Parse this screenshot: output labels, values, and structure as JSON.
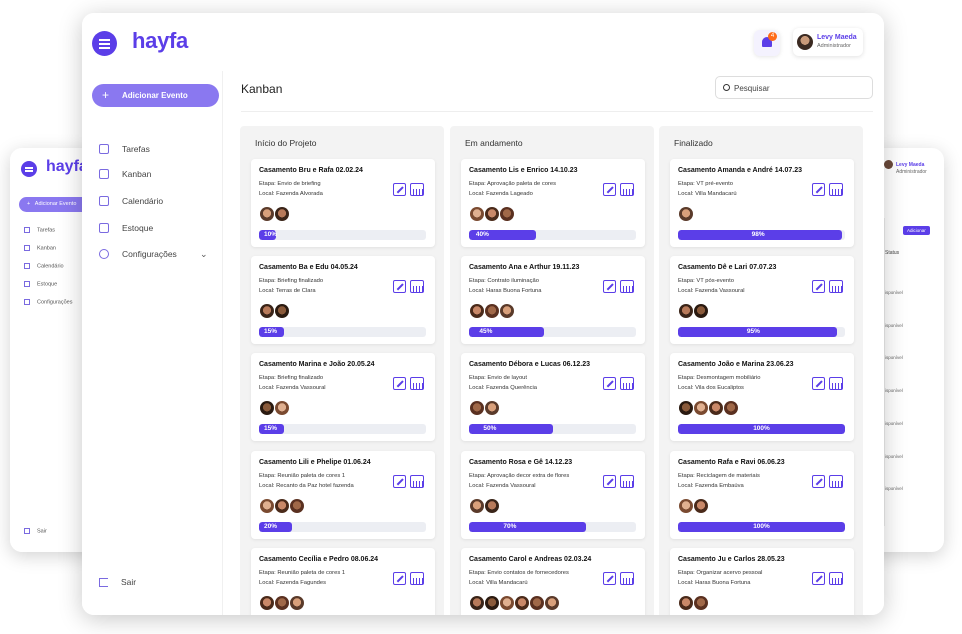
{
  "app": {
    "brand": "hayfa"
  },
  "header": {
    "notifications_count": "4",
    "user": {
      "name": "Levy Maeda",
      "role": "Administrador"
    }
  },
  "sidebar": {
    "add_event_label": "Adicionar Evento",
    "items": [
      {
        "label": "Tarefas",
        "icon": "clipboard-icon"
      },
      {
        "label": "Kanban",
        "icon": "kanban-icon"
      },
      {
        "label": "Calendário",
        "icon": "calendar-icon"
      },
      {
        "label": "Estoque",
        "icon": "box-icon"
      },
      {
        "label": "Configurações",
        "icon": "gear-icon"
      }
    ],
    "exit_label": "Sair"
  },
  "main": {
    "title": "Kanban",
    "search_placeholder": "Pesquisar",
    "columns": [
      {
        "title": "Início do Projeto",
        "cards": [
          {
            "title": "Casamento Bru e Rafa 02.02.24",
            "stage": "Etapa: Envio de briefing",
            "place": "Local: Fazenda Alvorada",
            "avatars": 2,
            "progress": "10%"
          },
          {
            "title": "Casamento Ba e Edu 04.05.24",
            "stage": "Etapa: Briefing finalizado",
            "place": "Local: Terras de Clara",
            "avatars": 2,
            "progress": "15%"
          },
          {
            "title": "Casamento Marina e João 20.05.24",
            "stage": "Etapa: Briefing finalizado",
            "place": "Local: Fazenda Vassoural",
            "avatars": 2,
            "progress": "15%"
          },
          {
            "title": "Casamento Lili e Phelipe 01.06.24",
            "stage": "Etapa: Reunião paleta de cores 1",
            "place": "Local: Recanto da Paz hotel fazenda",
            "avatars": 3,
            "progress": "20%"
          },
          {
            "title": "Casamento Cecília e Pedro 08.06.24",
            "stage": "Etapa: Reunião paleta de cores 1",
            "place": "Local: Fazenda Fagundes",
            "avatars": 3,
            "progress": ""
          }
        ]
      },
      {
        "title": "Em andamento",
        "cards": [
          {
            "title": "Casamento Lis e Enrico 14.10.23",
            "stage": "Etapa: Aprovação paleta de cores",
            "place": "Local: Fazenda Lageado",
            "avatars": 3,
            "progress": "40%"
          },
          {
            "title": "Casamento Ana e Arthur 19.11.23",
            "stage": "Etapa: Contrato iluminação",
            "place": "Local: Haras Buona Fortuna",
            "avatars": 3,
            "progress": "45%"
          },
          {
            "title": "Casamento Débora e Lucas 06.12.23",
            "stage": "Etapa: Envio de layout",
            "place": "Local: Fazenda Querência",
            "avatars": 2,
            "progress": "50%"
          },
          {
            "title": "Casamento Rosa e Gê 14.12.23",
            "stage": "Etapa: Aprovação decor extra de flores",
            "place": "Local: Fazenda Vassoural",
            "avatars": 2,
            "progress": "70%"
          },
          {
            "title": "Casamento Carol e Andreas 02.03.24",
            "stage": "Etapa: Envio contatos de fornecedores",
            "place": "Local: Villa Mandacarú",
            "avatars": 6,
            "progress": ""
          }
        ]
      },
      {
        "title": "Finalizado",
        "cards": [
          {
            "title": "Casamento Amanda e André 14.07.23",
            "stage": "Etapa: VT pré-evento",
            "place": "Local: Villa Mandacarú",
            "avatars": 1,
            "progress": "98%"
          },
          {
            "title": "Casamento Dê e Lari 07.07.23",
            "stage": "Etapa: VT pós-evento",
            "place": "Local: Fazenda Vassoural",
            "avatars": 2,
            "progress": "95%"
          },
          {
            "title": "Casamento João e Marina 23.06.23",
            "stage": "Etapa: Desmontagem mobiliário",
            "place": "Local: Vila dos Eucaliptos",
            "avatars": 4,
            "progress": "100%"
          },
          {
            "title": "Casamento Rafa e Ravi 06.06.23",
            "stage": "Etapa: Reciclagem de materiais",
            "place": "Local: Fazenda Embaúva",
            "avatars": 2,
            "progress": "100%"
          },
          {
            "title": "Casamento Ju e Carlos 28.05.23",
            "stage": "Etapa: Organizar acervo pessoal",
            "place": "Local: Haras Buona Fortuna",
            "avatars": 2,
            "progress": ""
          }
        ]
      }
    ]
  },
  "back_window": {
    "brand": "hayfa",
    "add_event_label": "Adicionar Evento",
    "items": [
      "Tarefas",
      "Kanban",
      "Calendário",
      "Estoque",
      "Configurações"
    ],
    "exit_label": "Sair",
    "user_name": "Levy Maeda",
    "user_role": "Administrador",
    "button_label": "Adicionar",
    "status_header": "Status",
    "rows": [
      "isponível",
      "isponível",
      "isponível",
      "isponível",
      "isponível",
      "isponível",
      "isponível"
    ]
  },
  "colors": {
    "accent": "#5b3ee8",
    "accent_light": "#8a78f0",
    "notification": "#ff6a1a"
  }
}
